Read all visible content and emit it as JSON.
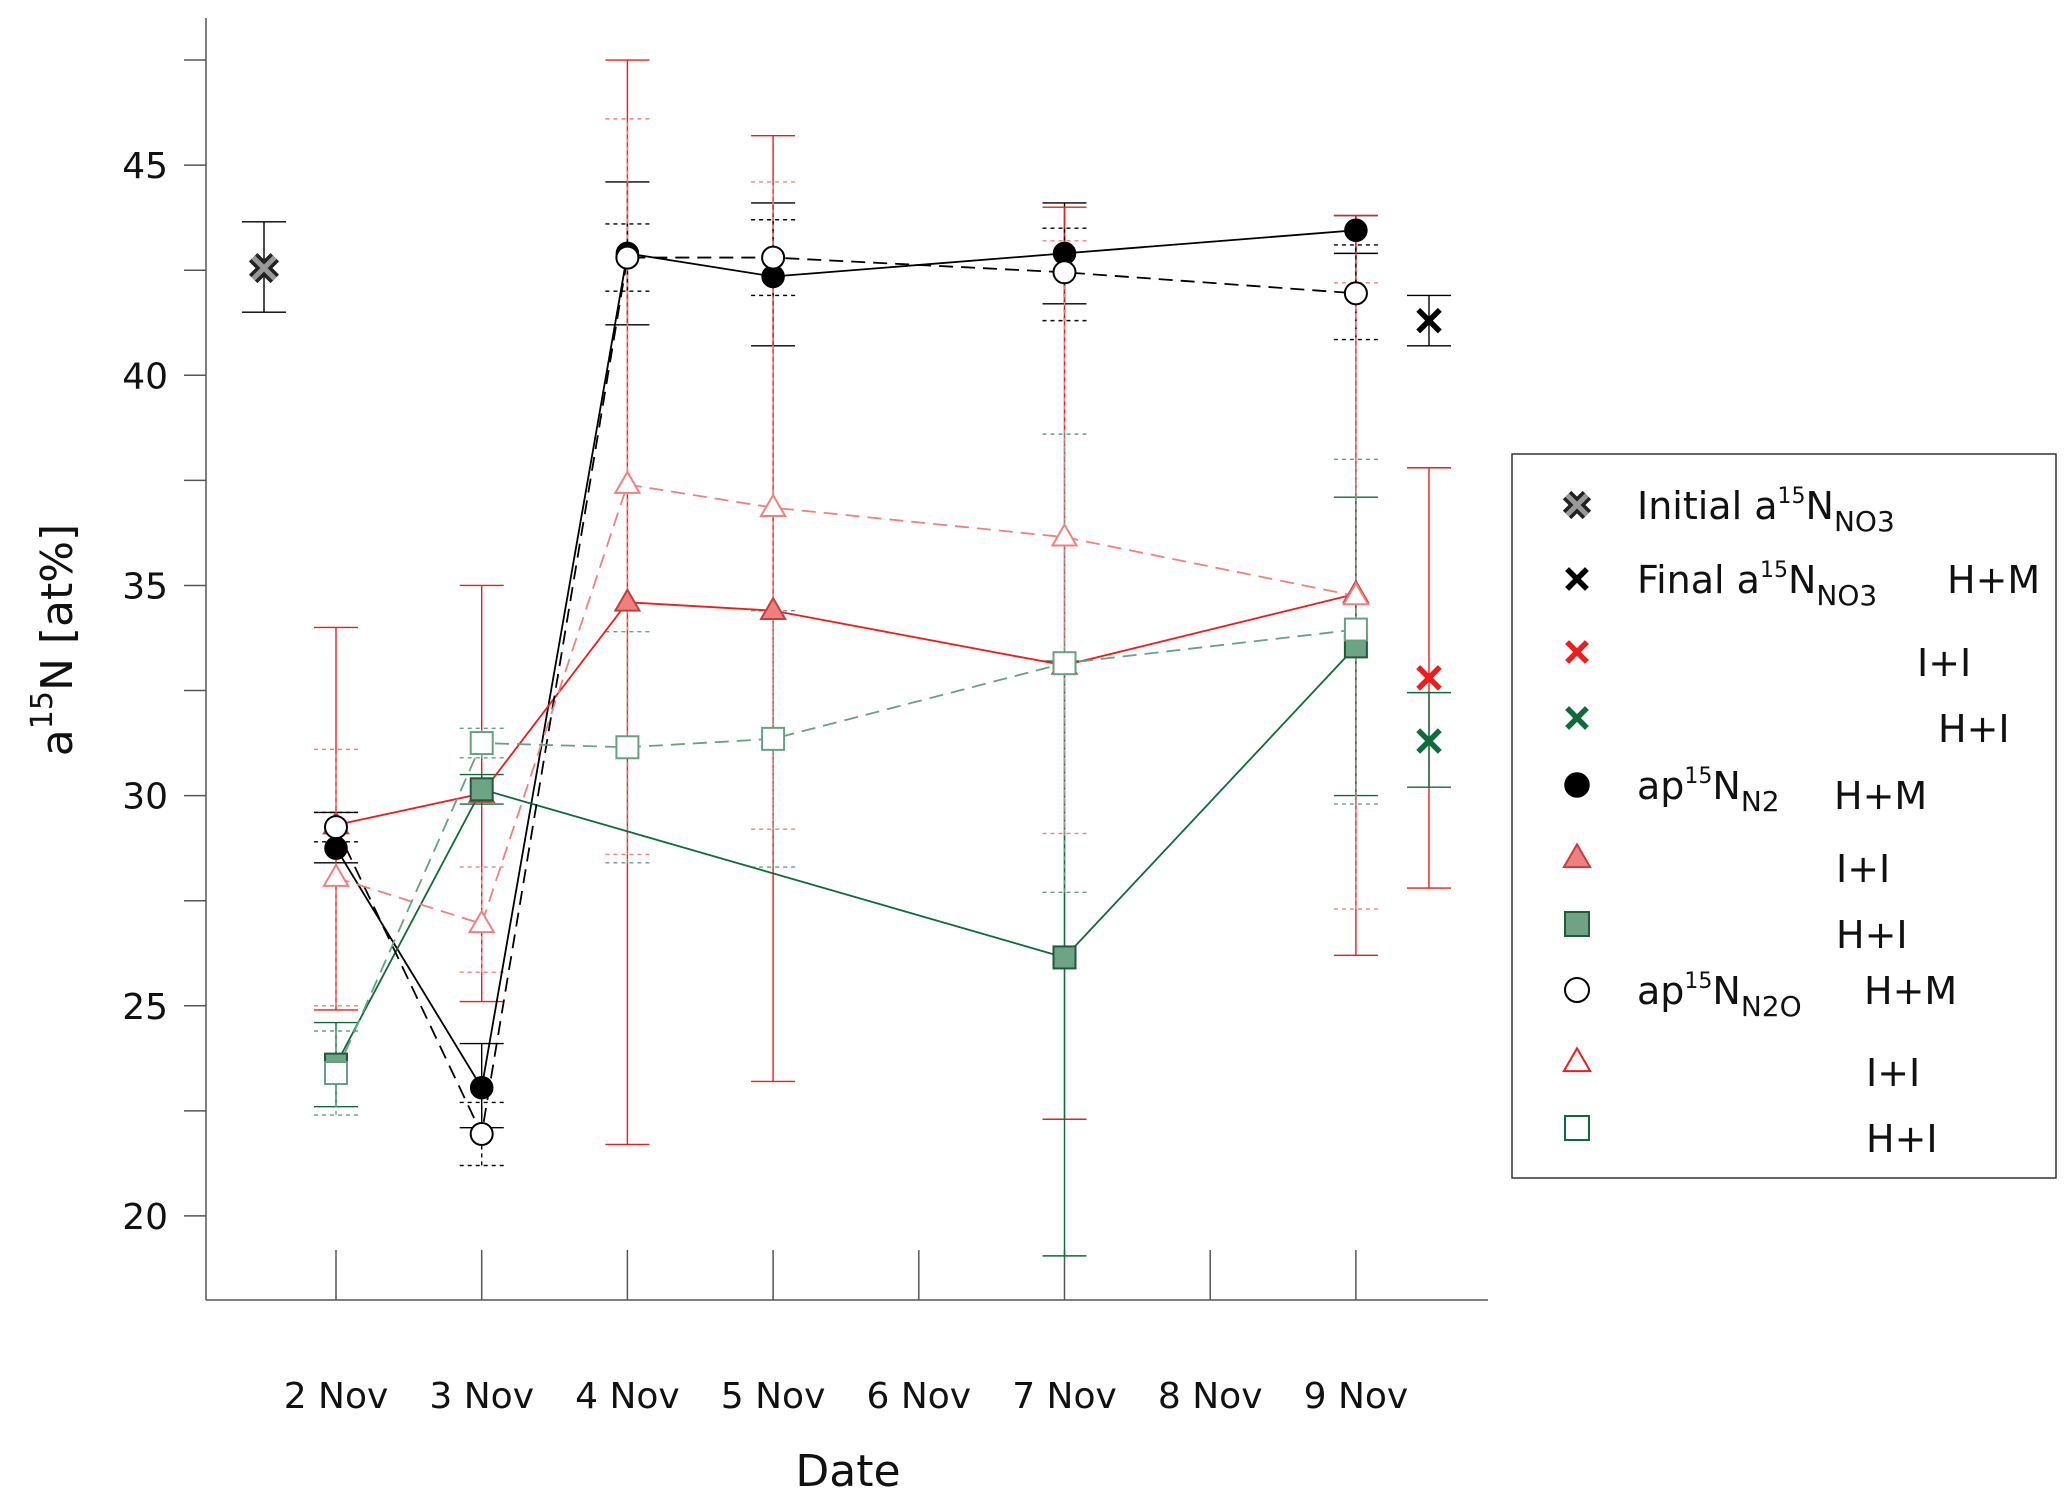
{
  "chart_data": {
    "type": "line",
    "xlabel": "Date",
    "ylabel": {
      "base": "a",
      "sup": "15",
      "rest": "N [at%]"
    },
    "categories": [
      "2 Nov",
      "3 Nov",
      "4 Nov",
      "5 Nov",
      "6 Nov",
      "7 Nov",
      "8 Nov",
      "9 Nov"
    ],
    "ylim": [
      18,
      48.5
    ],
    "yticks": [
      20,
      25,
      30,
      35,
      40,
      45
    ],
    "grid": false,
    "legend_position": "right",
    "colors": {
      "black": "#000000",
      "red": "#ee1c1c",
      "green": "#0e6b3a",
      "salmon": "#f08080",
      "sage": "#66a184"
    },
    "series": [
      {
        "group": "N2",
        "treatment": "H+M",
        "color": "black",
        "marker": "circle-filled",
        "dash": false,
        "x": [
          "2 Nov",
          "3 Nov",
          "4 Nov",
          "5 Nov",
          "7 Nov",
          "9 Nov"
        ],
        "y": [
          28.75,
          23.05,
          42.9,
          42.35,
          42.9,
          43.45
        ],
        "err_low": [
          28.4,
          22.1,
          41.2,
          40.7,
          41.7,
          42.9
        ],
        "err_high": [
          29.6,
          24.1,
          44.6,
          44.1,
          44.1,
          43.8
        ]
      },
      {
        "group": "N2",
        "treatment": "I+I",
        "color": "red",
        "marker": "triangle-filled",
        "dash": false,
        "x": [
          "2 Nov",
          "3 Nov",
          "4 Nov",
          "5 Nov",
          "7 Nov",
          "9 Nov"
        ],
        "y": [
          29.3,
          30.05,
          34.6,
          34.4,
          33.1,
          34.8
        ],
        "err_low": [
          24.9,
          25.1,
          21.7,
          23.2,
          22.3,
          26.2
        ],
        "err_high": [
          34.0,
          35.0,
          47.5,
          45.7,
          44.0,
          43.8
        ]
      },
      {
        "group": "N2",
        "treatment": "H+I",
        "color": "green",
        "marker": "square-filled",
        "dash": false,
        "x": [
          "2 Nov",
          "3 Nov",
          "7 Nov",
          "9 Nov"
        ],
        "y": [
          23.6,
          30.15,
          26.15,
          33.55
        ],
        "err_low": [
          22.6,
          29.8,
          19.05,
          30.0
        ],
        "err_high": [
          24.6,
          30.5,
          33.2,
          37.1
        ]
      },
      {
        "group": "N2O",
        "treatment": "H+M",
        "color": "black",
        "marker": "circle-open",
        "dash": true,
        "x": [
          "2 Nov",
          "3 Nov",
          "4 Nov",
          "5 Nov",
          "7 Nov",
          "9 Nov"
        ],
        "y": [
          29.25,
          21.95,
          42.8,
          42.8,
          42.45,
          41.95
        ],
        "err_low": [
          28.9,
          21.2,
          42.0,
          41.9,
          41.3,
          40.85
        ],
        "err_high": [
          29.6,
          22.7,
          43.6,
          43.7,
          43.5,
          43.1
        ]
      },
      {
        "group": "N2O",
        "treatment": "I+I",
        "color": "salmon",
        "marker": "triangle-open",
        "dash": true,
        "x": [
          "2 Nov",
          "3 Nov",
          "4 Nov",
          "5 Nov",
          "7 Nov",
          "9 Nov"
        ],
        "y": [
          28.05,
          26.95,
          37.4,
          36.85,
          36.15,
          34.75
        ],
        "err_low": [
          25.0,
          25.8,
          28.6,
          29.2,
          29.1,
          27.3
        ],
        "err_high": [
          31.1,
          28.3,
          46.1,
          44.6,
          43.2,
          42.2
        ]
      },
      {
        "group": "N2O",
        "treatment": "H+I",
        "color": "sage",
        "marker": "square-open",
        "dash": true,
        "x": [
          "2 Nov",
          "3 Nov",
          "4 Nov",
          "5 Nov",
          "7 Nov",
          "9 Nov"
        ],
        "y": [
          23.4,
          31.25,
          31.15,
          31.35,
          33.15,
          33.95
        ],
        "err_low": [
          22.4,
          30.9,
          28.4,
          28.3,
          27.7,
          29.8
        ],
        "err_high": [
          24.4,
          31.6,
          33.9,
          34.4,
          38.6,
          38.0
        ]
      }
    ],
    "nitrate_points": [
      {
        "label": "initial",
        "position": "left",
        "marker": "x-bold",
        "color": "black",
        "y": 42.55,
        "err_low": 41.5,
        "err_high": 43.65
      },
      {
        "label": "final",
        "treatment": "H+M",
        "position": "right",
        "marker": "x",
        "color": "black",
        "y": 41.3,
        "err_low": 40.7,
        "err_high": 41.9
      },
      {
        "label": "final",
        "treatment": "I+I",
        "position": "right",
        "marker": "x",
        "color": "red",
        "y": 32.8,
        "err_low": 27.8,
        "err_high": 37.8
      },
      {
        "label": "final",
        "treatment": "H+I",
        "position": "right",
        "marker": "x",
        "color": "green",
        "y": 31.3,
        "err_low": 30.2,
        "err_high": 32.45
      }
    ]
  },
  "legend": {
    "rows": [
      {
        "marker": "x-bold",
        "marker_color": "black",
        "text": "Initial a",
        "sup": "15",
        "mid": "N",
        "sub": "NO3",
        "tag": "",
        "tag_color": "black"
      },
      {
        "marker": "x",
        "marker_color": "black",
        "text": "Final a",
        "sup": "15",
        "mid": "N",
        "sub": "NO3",
        "tag": "H+M",
        "tag_color": "black"
      },
      {
        "marker": "x",
        "marker_color": "red",
        "text": "",
        "sup": "",
        "mid": "",
        "sub": "",
        "tag": "I+I",
        "tag_color": "red"
      },
      {
        "marker": "x",
        "marker_color": "green",
        "text": "",
        "sup": "",
        "mid": "",
        "sub": "",
        "tag": "H+I",
        "tag_color": "green"
      },
      {
        "marker": "circle-filled",
        "marker_color": "black",
        "text": "ap",
        "sup": "15",
        "mid": "N",
        "sub": "N2",
        "tag": "H+M",
        "tag_color": "black"
      },
      {
        "marker": "triangle-filled",
        "marker_color": "red",
        "text": "",
        "sup": "",
        "mid": "",
        "sub": "",
        "tag": "I+I",
        "tag_color": "red"
      },
      {
        "marker": "square-filled",
        "marker_color": "green",
        "text": "",
        "sup": "",
        "mid": "",
        "sub": "",
        "tag": "H+I",
        "tag_color": "green"
      },
      {
        "marker": "circle-open",
        "marker_color": "black",
        "text": "ap",
        "sup": "15",
        "mid": "N",
        "sub": "N2O",
        "tag": "H+M",
        "tag_color": "black"
      },
      {
        "marker": "triangle-open",
        "marker_color": "red",
        "text": "",
        "sup": "",
        "mid": "",
        "sub": "",
        "tag": "I+I",
        "tag_color": "red"
      },
      {
        "marker": "square-open",
        "marker_color": "green",
        "text": "",
        "sup": "",
        "mid": "",
        "sub": "",
        "tag": "H+I",
        "tag_color": "green"
      }
    ]
  }
}
